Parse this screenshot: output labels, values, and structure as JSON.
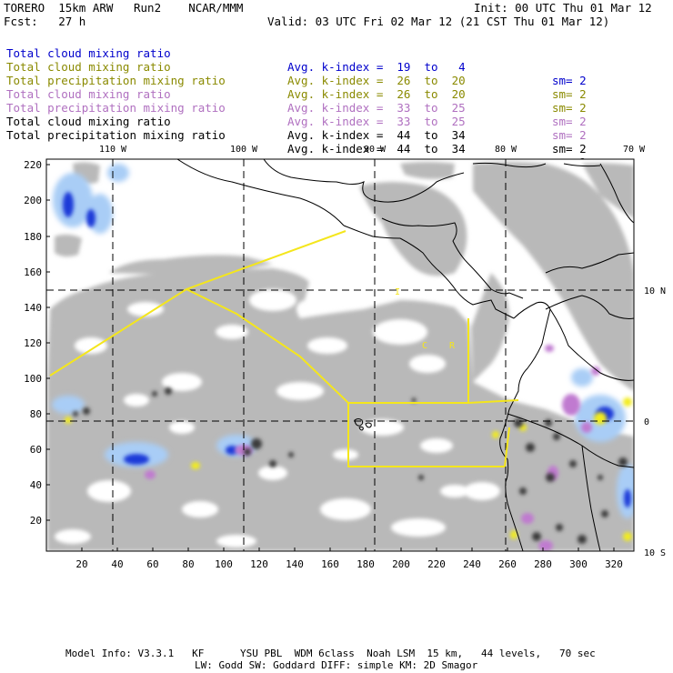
{
  "header": {
    "model": "TORERO  15km ARW   Run2    NCAR/MMM",
    "init": "Init: 00 UTC Thu 01 Mar 12",
    "fcst": "Fcst:   27 h",
    "valid": "Valid: 03 UTC Fri 02 Mar 12 (21 CST Thu 01 Mar 12)"
  },
  "legend": [
    {
      "field": "Total cloud mixing ratio",
      "kindex": "Avg. k-index =  19  to   4",
      "sm": "sm= 2",
      "color": "#0000cc"
    },
    {
      "field": "Total cloud mixing ratio",
      "kindex": "Avg. k-index =  26  to  20",
      "sm": "sm= 2",
      "color": "#8a8a00"
    },
    {
      "field": "Total precipitation mixing ratio",
      "kindex": "Avg. k-index =  26  to  20",
      "sm": "sm= 2",
      "color": "#8a8a00"
    },
    {
      "field": "Total cloud mixing ratio",
      "kindex": "Avg. k-index =  33  to  25",
      "sm": "sm= 2",
      "color": "#b070c0"
    },
    {
      "field": "Total precipitation mixing ratio",
      "kindex": "Avg. k-index =  33  to  25",
      "sm": "sm= 2",
      "color": "#b070c0"
    },
    {
      "field": "Total cloud mixing ratio",
      "kindex": "Avg. k-index =  44  to  34",
      "sm": "sm= 2",
      "color": "#000000"
    },
    {
      "field": "Total precipitation mixing ratio",
      "kindex": "Avg. k-index =  44  to  34",
      "sm": "sm= 2",
      "color": "#000000"
    }
  ],
  "map": {
    "lon_labels": [
      "110 W",
      "100 W",
      "90 W",
      "80 W",
      "70 W"
    ],
    "lat_labels": [
      "10 N",
      "0",
      "10 S"
    ],
    "y_ticks": [
      "220",
      "200",
      "180",
      "160",
      "140",
      "120",
      "100",
      "80",
      "60",
      "40",
      "20"
    ],
    "x_ticks": [
      "20",
      "40",
      "60",
      "80",
      "100",
      "120",
      "140",
      "160",
      "180",
      "200",
      "220",
      "240",
      "260",
      "280",
      "300",
      "320"
    ],
    "annotation_letters": [
      "I",
      "C",
      "R"
    ],
    "colors": {
      "cloud_gray": "#b9b9b9",
      "dark_core": "#3a3a3a",
      "blue_core": "#1a3ad8",
      "light_blue": "#a9cdf6",
      "magenta": "#c07ad0",
      "yellow": "#f2ec1a",
      "track": "#f4e61c"
    }
  },
  "footer": {
    "line1": "Model Info: V3.3.1   KF      YSU PBL  WDM 6class  Noah LSM  15 km,   44 levels,   70 sec",
    "line2": "LW: Godd SW: Goddard DIFF: simple KM: 2D Smagor"
  }
}
